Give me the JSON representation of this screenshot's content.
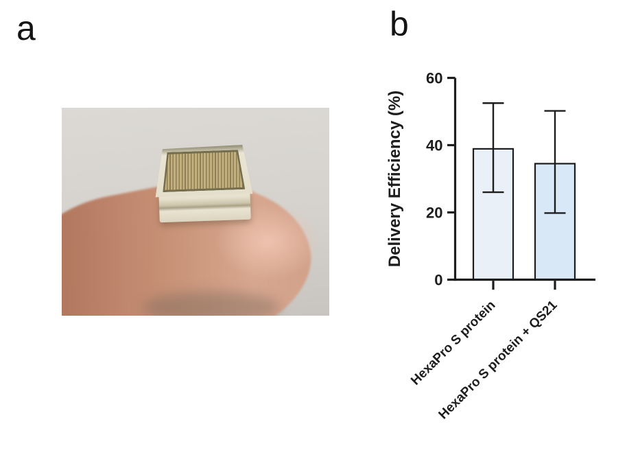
{
  "panels": {
    "a_label": "a",
    "b_label": "b"
  },
  "photo": {
    "description": "square microneedle array patch resting on a fingertip",
    "background_color": "#d5d2cd",
    "finger_color": "#c99479",
    "patch_frame_color": "#e6e0ce",
    "patch_needle_colors": [
      "#c2b07e",
      "#8f7d54"
    ]
  },
  "chart_data": {
    "type": "bar",
    "title": "",
    "xlabel": "",
    "ylabel": "Delivery Efficiency (%)",
    "ylim": [
      0,
      60
    ],
    "yticks": [
      0,
      20,
      40,
      60
    ],
    "categories": [
      "HexaPro S protein",
      "HexaPro S protein + QS21"
    ],
    "values": [
      38.9,
      34.5
    ],
    "error_upper": [
      52.5,
      50.2
    ],
    "error_lower": [
      26.0,
      19.8
    ],
    "grid": false,
    "legend_position": "none",
    "bar_fills": [
      "#e9f0f8",
      "#d9e8f6"
    ],
    "bar_stroke": "#1d1d1d",
    "axis_color": "#1d1d1d"
  }
}
